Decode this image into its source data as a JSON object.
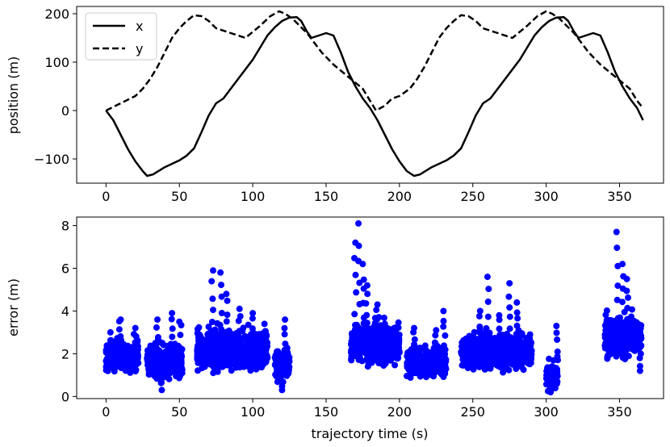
{
  "chart_data": [
    {
      "type": "line",
      "ylabel": "position (m)",
      "xlabel": "",
      "xlim": [
        -20,
        380
      ],
      "ylim": [
        -150,
        215
      ],
      "xticks": [
        0,
        50,
        100,
        150,
        200,
        250,
        300,
        350
      ],
      "yticks": [
        -100,
        0,
        100,
        200
      ],
      "ytick_labels": [
        "−100",
        "0",
        "100",
        "200"
      ],
      "legend": "top-left",
      "series": [
        {
          "name": "x",
          "style": "solid",
          "color": "#000000",
          "x": [
            0,
            5,
            10,
            15,
            20,
            25,
            28,
            32,
            40,
            50,
            55,
            60,
            65,
            70,
            75,
            80,
            85,
            90,
            95,
            100,
            105,
            110,
            115,
            120,
            125,
            130,
            133,
            137,
            140,
            145,
            150,
            155,
            160,
            165,
            170,
            175,
            180,
            185,
            190,
            195,
            200,
            205,
            210,
            214,
            222,
            232,
            237,
            242,
            247,
            252,
            257,
            262,
            267,
            272,
            277,
            282,
            287,
            292,
            297,
            302,
            307,
            312,
            315,
            319,
            322,
            327,
            332,
            337,
            342,
            347,
            352,
            357,
            362,
            366
          ],
          "y": [
            0,
            -20,
            -50,
            -80,
            -105,
            -125,
            -135,
            -132,
            -117,
            -103,
            -93,
            -78,
            -45,
            -10,
            15,
            25,
            45,
            65,
            85,
            105,
            130,
            155,
            172,
            185,
            192,
            193,
            185,
            163,
            150,
            155,
            160,
            155,
            120,
            80,
            50,
            25,
            5,
            -20,
            -50,
            -80,
            -105,
            -125,
            -135,
            -132,
            -117,
            -103,
            -93,
            -78,
            -45,
            -10,
            15,
            25,
            45,
            65,
            85,
            105,
            130,
            155,
            172,
            185,
            192,
            193,
            185,
            163,
            150,
            155,
            160,
            155,
            120,
            80,
            50,
            25,
            5,
            -20
          ]
        },
        {
          "name": "y",
          "style": "dashed",
          "color": "#000000",
          "x": [
            0,
            10,
            20,
            25,
            30,
            35,
            40,
            45,
            50,
            55,
            60,
            65,
            70,
            75,
            85,
            95,
            105,
            112,
            118,
            122,
            127,
            132,
            137,
            142,
            147,
            155,
            165,
            175,
            180,
            184,
            190,
            195,
            200,
            207,
            212,
            217,
            222,
            227,
            232,
            237,
            242,
            247,
            252,
            257,
            267,
            277,
            287,
            294,
            300,
            304,
            309,
            314,
            319,
            324,
            329,
            337,
            347,
            357,
            362,
            366
          ],
          "y": [
            0,
            15,
            30,
            45,
            65,
            90,
            120,
            150,
            170,
            185,
            197,
            195,
            185,
            170,
            160,
            150,
            175,
            195,
            205,
            200,
            190,
            175,
            160,
            140,
            120,
            95,
            70,
            45,
            20,
            0,
            10,
            25,
            30,
            45,
            65,
            90,
            120,
            150,
            170,
            185,
            197,
            195,
            185,
            170,
            160,
            150,
            175,
            195,
            205,
            200,
            190,
            175,
            160,
            140,
            120,
            95,
            70,
            45,
            20,
            5
          ]
        }
      ]
    },
    {
      "type": "scatter",
      "xlabel": "trajectory time (s)",
      "ylabel": "error (m)",
      "xlim": [
        -20,
        380
      ],
      "ylim": [
        -0.1,
        8.4
      ],
      "xticks": [
        0,
        50,
        100,
        150,
        200,
        250,
        300,
        350
      ],
      "yticks": [
        0,
        2,
        4,
        6,
        8
      ],
      "color": "#0000ff",
      "clusters": [
        {
          "x": [
            0,
            22
          ],
          "y_center": 1.9,
          "y_spread": 0.6,
          "peaks": [
            [
              3,
              3.0
            ],
            [
              10,
              3.6
            ],
            [
              20,
              3.2
            ]
          ]
        },
        {
          "x": [
            28,
            52
          ],
          "y_center": 1.6,
          "y_spread": 0.7,
          "peaks": [
            [
              35,
              3.6
            ],
            [
              45,
              3.9
            ],
            [
              50,
              3.5
            ],
            [
              38,
              0.3
            ]
          ]
        },
        {
          "x": [
            62,
            110
          ],
          "y_center": 2.2,
          "y_spread": 0.8,
          "peaks": [
            [
              73,
              5.9
            ],
            [
              78,
              5.8
            ],
            [
              82,
              4.8
            ],
            [
              91,
              4.1
            ],
            [
              100,
              3.9
            ],
            [
              108,
              3.4
            ]
          ]
        },
        {
          "x": [
            115,
            125
          ],
          "y_center": 1.5,
          "y_spread": 0.6,
          "peaks": [
            [
              122,
              3.6
            ],
            [
              120,
              0.3
            ]
          ]
        },
        {
          "x": [
            167,
            200
          ],
          "y_center": 2.5,
          "y_spread": 0.8,
          "peaks": [
            [
              170,
              7.2
            ],
            [
              172,
              8.1
            ],
            [
              175,
              6.2
            ],
            [
              178,
              5.2
            ],
            [
              185,
              4.3
            ],
            [
              190,
              3.4
            ]
          ]
        },
        {
          "x": [
            205,
            232
          ],
          "y_center": 1.6,
          "y_spread": 0.6,
          "peaks": [
            [
              210,
              3.2
            ],
            [
              225,
              3.1
            ],
            [
              230,
              4.0
            ]
          ]
        },
        {
          "x": [
            242,
            290
          ],
          "y_center": 2.1,
          "y_spread": 0.7,
          "peaks": [
            [
              255,
              4.0
            ],
            [
              260,
              5.6
            ],
            [
              268,
              3.8
            ],
            [
              275,
              5.3
            ],
            [
              280,
              4.4
            ],
            [
              289,
              2.9
            ]
          ]
        },
        {
          "x": [
            300,
            308
          ],
          "y_center": 1.0,
          "y_spread": 0.6,
          "peaks": [
            [
              307,
              3.3
            ],
            [
              303,
              0.2
            ]
          ]
        },
        {
          "x": [
            340,
            365
          ],
          "y_center": 2.8,
          "y_spread": 0.8,
          "peaks": [
            [
              348,
              7.7
            ],
            [
              352,
              6.2
            ],
            [
              355,
              5.5
            ],
            [
              360,
              3.5
            ],
            [
              364,
              1.2
            ]
          ]
        }
      ]
    }
  ]
}
